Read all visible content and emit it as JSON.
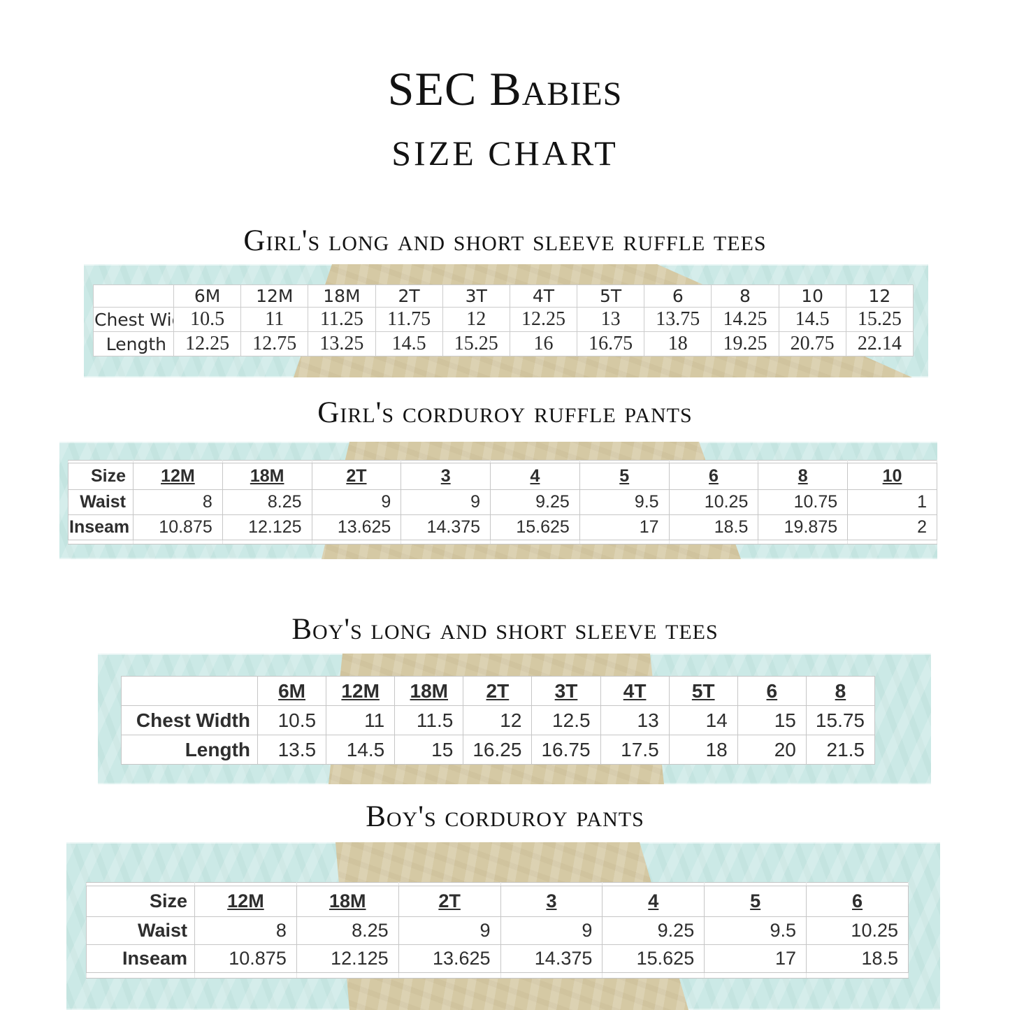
{
  "page": {
    "title": "SEC Babies",
    "subtitle": "SIZE CHART"
  },
  "colors": {
    "band_blue": "#cbe9e6",
    "ribbon_tan": "#d5c9a4",
    "grid_line": "#c6c6c6",
    "text": "#161616"
  },
  "sections": [
    {
      "heading": "Girl's long and short sleeve ruffle tees",
      "table": {
        "style": "handwritten",
        "corner_label": "",
        "columns": [
          "6M",
          "12M",
          "18M",
          "2T",
          "3T",
          "4T",
          "5T",
          "6",
          "8",
          "10",
          "12"
        ],
        "rows": [
          {
            "label": "Chest Width",
            "values": [
              "10.5",
              "11",
              "11.25",
              "11.75",
              "12",
              "12.25",
              "13",
              "13.75",
              "14.25",
              "14.5",
              "15.25"
            ]
          },
          {
            "label": "Length",
            "values": [
              "12.25",
              "12.75",
              "13.25",
              "14.5",
              "15.25",
              "16",
              "16.75",
              "18",
              "19.25",
              "20.75",
              "22.14"
            ]
          }
        ]
      }
    },
    {
      "heading": "Girl's corduroy ruffle pants",
      "table": {
        "style": "spreadsheet",
        "corner_label": "Size",
        "columns": [
          "12M",
          "18M",
          "2T",
          "3",
          "4",
          "5",
          "6",
          "8",
          "10"
        ],
        "rows": [
          {
            "label": "Waist",
            "values": [
              "8",
              "8.25",
              "9",
              "9",
              "9.25",
              "9.5",
              "10.25",
              "10.75",
              "1"
            ]
          },
          {
            "label": "Inseam",
            "values": [
              "10.875",
              "12.125",
              "13.625",
              "14.375",
              "15.625",
              "17",
              "18.5",
              "19.875",
              "2"
            ]
          }
        ]
      }
    },
    {
      "heading": "Boy's long and short sleeve tees",
      "table": {
        "style": "spreadsheet",
        "corner_label": "",
        "columns": [
          "6M",
          "12M",
          "18M",
          "2T",
          "3T",
          "4T",
          "5T",
          "6",
          "8"
        ],
        "rows": [
          {
            "label": "Chest Width",
            "values": [
              "10.5",
              "11",
              "11.5",
              "12",
              "12.5",
              "13",
              "14",
              "15",
              "15.75"
            ]
          },
          {
            "label": "Length",
            "values": [
              "13.5",
              "14.5",
              "15",
              "16.25",
              "16.75",
              "17.5",
              "18",
              "20",
              "21.5"
            ]
          }
        ]
      }
    },
    {
      "heading": "Boy's corduroy pants",
      "table": {
        "style": "spreadsheet",
        "corner_label": "Size",
        "columns": [
          "12M",
          "18M",
          "2T",
          "3",
          "4",
          "5",
          "6"
        ],
        "rows": [
          {
            "label": "Waist",
            "values": [
              "8",
              "8.25",
              "9",
              "9",
              "9.25",
              "9.5",
              "10.25"
            ]
          },
          {
            "label": "Inseam",
            "values": [
              "10.875",
              "12.125",
              "13.625",
              "14.375",
              "15.625",
              "17",
              "18.5"
            ]
          }
        ]
      }
    }
  ]
}
